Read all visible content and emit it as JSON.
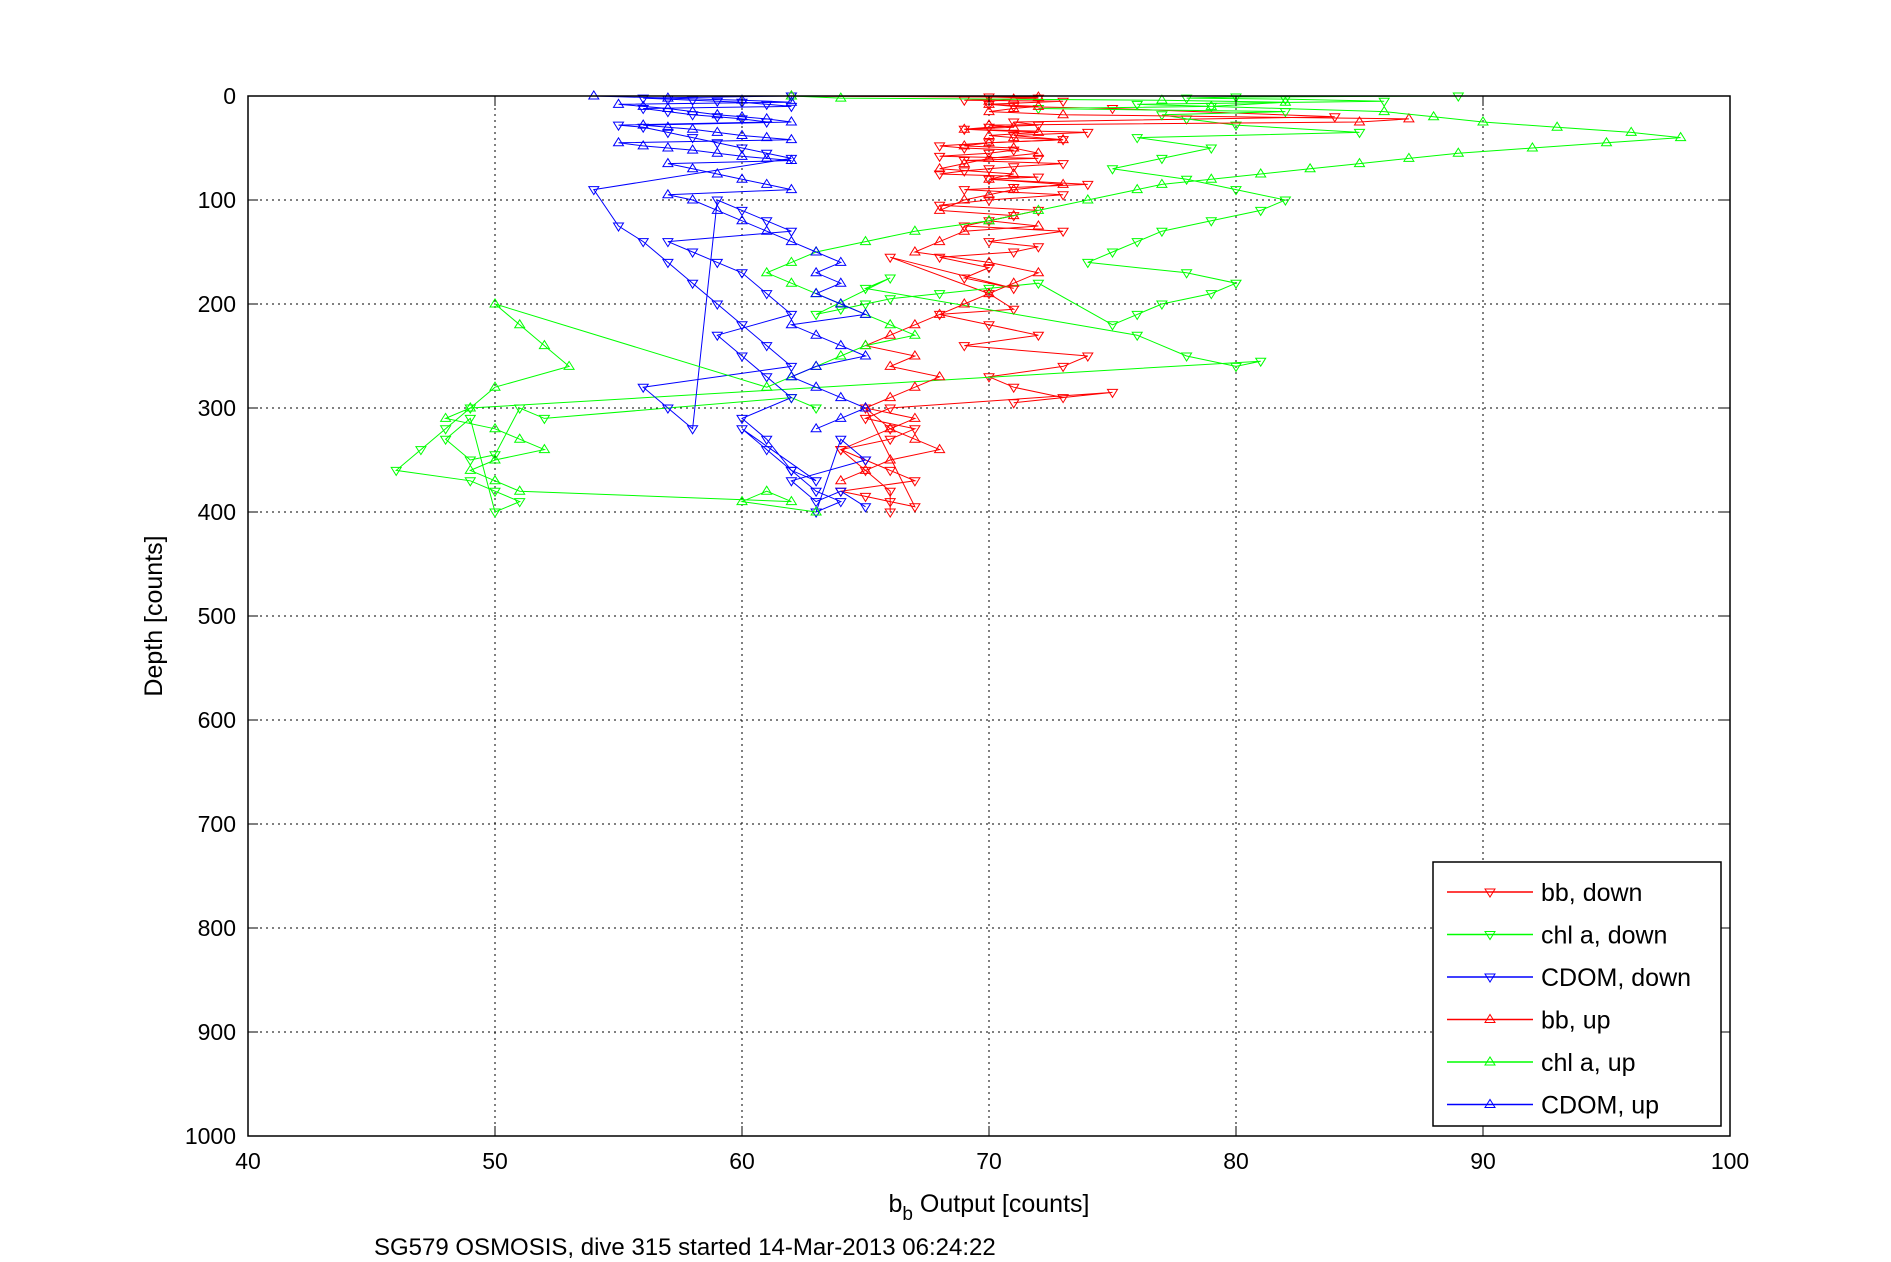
{
  "chart_data": {
    "type": "line",
    "title": "",
    "caption": "SG579 OSMOSIS, dive 315 started 14-Mar-2013 06:24:22",
    "xlabel_main": "b",
    "xlabel_sub": "b",
    "xlabel_rest": " Output [counts]",
    "ylabel": "Depth [counts]",
    "xlim": [
      40,
      100
    ],
    "ylim": [
      0,
      1000
    ],
    "y_reversed": true,
    "grid": true,
    "x_ticks": [
      "40",
      "50",
      "60",
      "70",
      "80",
      "90",
      "100"
    ],
    "y_ticks": [
      "0",
      "100",
      "200",
      "300",
      "400",
      "500",
      "600",
      "700",
      "800",
      "900",
      "1000"
    ],
    "legend_position": "bottom-right",
    "colors": {
      "red": "#ff0000",
      "green": "#00ff00",
      "blue": "#0000ff"
    },
    "series": [
      {
        "name": "bb, down",
        "color": "#ff0000",
        "marker": "triangle-down",
        "x": [
          62,
          70,
          72,
          69,
          73,
          70,
          71,
          75,
          84,
          71,
          72,
          70,
          69,
          74,
          71,
          73,
          70,
          68,
          69,
          71,
          70,
          68,
          72,
          69,
          73,
          71,
          70,
          69,
          68,
          72,
          70,
          74,
          71,
          69,
          73,
          70,
          68,
          72,
          71,
          70,
          69,
          73,
          70,
          72,
          71,
          68,
          70,
          69,
          71,
          66,
          70,
          71,
          68,
          70,
          72,
          69,
          74,
          73,
          70,
          71,
          73,
          71,
          75,
          66,
          65,
          67,
          66,
          64,
          65,
          66,
          67,
          64,
          65,
          66,
          67,
          65,
          66,
          64,
          65,
          66,
          66
        ],
        "y": [
          0,
          1,
          2,
          4,
          5,
          8,
          10,
          12,
          20,
          25,
          28,
          30,
          32,
          35,
          38,
          42,
          45,
          48,
          50,
          52,
          55,
          58,
          60,
          62,
          65,
          68,
          70,
          72,
          75,
          78,
          80,
          85,
          88,
          90,
          95,
          100,
          105,
          110,
          115,
          120,
          125,
          130,
          140,
          145,
          150,
          155,
          165,
          175,
          185,
          155,
          190,
          205,
          210,
          220,
          230,
          240,
          250,
          260,
          270,
          280,
          290,
          295,
          285,
          300,
          310,
          320,
          330,
          340,
          350,
          360,
          370,
          380,
          385,
          390,
          395,
          300,
          320,
          340,
          360,
          380,
          400
        ]
      },
      {
        "name": "chl a, down",
        "color": "#00ff00",
        "marker": "triangle-down",
        "x": [
          62,
          89,
          80,
          78,
          82,
          86,
          76,
          79,
          72,
          82,
          77,
          78,
          80,
          85,
          76,
          79,
          77,
          75,
          78,
          80,
          82,
          81,
          79,
          77,
          76,
          75,
          74,
          78,
          80,
          79,
          77,
          76,
          75,
          72,
          70,
          68,
          66,
          65,
          64,
          63,
          66,
          65,
          76,
          78,
          80,
          81,
          49,
          48,
          47,
          46,
          49,
          50,
          51,
          50,
          49,
          48,
          49,
          50,
          51,
          52,
          62,
          63
        ],
        "y": [
          0,
          0,
          1,
          2,
          3,
          5,
          8,
          10,
          12,
          15,
          18,
          22,
          28,
          35,
          40,
          50,
          60,
          70,
          80,
          90,
          100,
          110,
          120,
          130,
          140,
          150,
          160,
          170,
          180,
          190,
          200,
          210,
          220,
          180,
          185,
          190,
          195,
          200,
          205,
          210,
          175,
          185,
          230,
          250,
          260,
          255,
          300,
          320,
          340,
          360,
          370,
          380,
          390,
          400,
          310,
          330,
          350,
          345,
          300,
          310,
          290,
          300
        ]
      },
      {
        "name": "CDOM, down",
        "color": "#0000ff",
        "marker": "triangle-down",
        "x": [
          62,
          56,
          57,
          58,
          59,
          60,
          61,
          62,
          56,
          57,
          58,
          59,
          60,
          61,
          55,
          56,
          57,
          58,
          59,
          60,
          61,
          62,
          54,
          55,
          56,
          57,
          58,
          59,
          60,
          61,
          62,
          56,
          57,
          58,
          59,
          60,
          61,
          62,
          57,
          58,
          59,
          60,
          61,
          62,
          59,
          60,
          61,
          62,
          60,
          61,
          62,
          63,
          60,
          61,
          62,
          63,
          64,
          63,
          64,
          65,
          62,
          63,
          64,
          65
        ],
        "y": [
          0,
          2,
          3,
          4,
          5,
          6,
          8,
          10,
          12,
          15,
          18,
          20,
          22,
          25,
          28,
          30,
          35,
          40,
          45,
          50,
          55,
          60,
          90,
          125,
          140,
          160,
          180,
          200,
          220,
          240,
          260,
          280,
          300,
          320,
          100,
          110,
          120,
          130,
          140,
          150,
          160,
          170,
          190,
          210,
          230,
          250,
          270,
          290,
          310,
          330,
          360,
          370,
          320,
          340,
          360,
          380,
          390,
          400,
          330,
          350,
          370,
          390,
          380,
          395
        ]
      },
      {
        "name": "bb, up",
        "color": "#ff0000",
        "marker": "triangle-up",
        "x": [
          62,
          72,
          71,
          70,
          70,
          72,
          71,
          70,
          73,
          87,
          85,
          70,
          71,
          69,
          72,
          70,
          71,
          73,
          70,
          69,
          71,
          72,
          70,
          69,
          68,
          71,
          70,
          73,
          71,
          70,
          69,
          68,
          71,
          70,
          72,
          69,
          68,
          67,
          70,
          72,
          71,
          70,
          69,
          68,
          67,
          66,
          65,
          67,
          66,
          68,
          67,
          66,
          65,
          67,
          66,
          67,
          68,
          66,
          65,
          64
        ],
        "y": [
          0,
          1,
          3,
          5,
          8,
          10,
          12,
          15,
          18,
          22,
          25,
          28,
          30,
          32,
          35,
          38,
          40,
          42,
          45,
          48,
          50,
          55,
          60,
          65,
          70,
          75,
          80,
          85,
          90,
          95,
          100,
          110,
          115,
          120,
          125,
          130,
          140,
          150,
          160,
          170,
          180,
          190,
          200,
          210,
          220,
          230,
          240,
          250,
          260,
          270,
          280,
          290,
          300,
          310,
          320,
          330,
          340,
          350,
          360,
          370
        ]
      },
      {
        "name": "chl a, up",
        "color": "#00ff00",
        "marker": "triangle-up",
        "x": [
          62,
          64,
          77,
          82,
          79,
          86,
          88,
          90,
          93,
          96,
          98,
          95,
          92,
          89,
          87,
          85,
          83,
          81,
          79,
          77,
          76,
          74,
          72,
          70,
          67,
          65,
          63,
          62,
          61,
          62,
          63,
          64,
          65,
          66,
          67,
          65,
          64,
          63,
          62,
          61,
          50,
          51,
          52,
          53,
          50,
          49,
          48,
          50,
          51,
          52,
          50,
          49,
          50,
          51,
          62,
          61,
          60,
          63
        ],
        "y": [
          0,
          2,
          4,
          6,
          10,
          15,
          20,
          25,
          30,
          35,
          40,
          45,
          50,
          55,
          60,
          65,
          70,
          75,
          80,
          85,
          90,
          100,
          110,
          120,
          130,
          140,
          150,
          160,
          170,
          180,
          190,
          200,
          210,
          220,
          230,
          240,
          250,
          260,
          270,
          280,
          200,
          220,
          240,
          260,
          280,
          300,
          310,
          320,
          330,
          340,
          350,
          360,
          370,
          380,
          390,
          380,
          390,
          400
        ]
      },
      {
        "name": "CDOM, up",
        "color": "#0000ff",
        "marker": "triangle-up",
        "x": [
          54,
          57,
          60,
          62,
          55,
          56,
          57,
          58,
          59,
          60,
          61,
          62,
          56,
          57,
          58,
          59,
          60,
          61,
          62,
          55,
          56,
          57,
          58,
          59,
          60,
          61,
          62,
          57,
          58,
          59,
          60,
          61,
          62,
          57,
          58,
          59,
          60,
          61,
          62,
          63,
          64,
          63,
          64,
          63,
          64,
          65,
          62,
          63,
          64,
          65,
          63,
          62,
          63,
          64,
          65,
          64,
          63
        ],
        "y": [
          0,
          2,
          4,
          6,
          8,
          10,
          12,
          15,
          18,
          20,
          22,
          25,
          28,
          30,
          32,
          35,
          38,
          40,
          42,
          45,
          48,
          50,
          52,
          55,
          58,
          60,
          62,
          65,
          70,
          75,
          80,
          85,
          90,
          95,
          100,
          110,
          120,
          130,
          140,
          150,
          160,
          170,
          180,
          190,
          200,
          210,
          220,
          230,
          240,
          250,
          260,
          270,
          280,
          290,
          300,
          310,
          320
        ]
      }
    ]
  }
}
